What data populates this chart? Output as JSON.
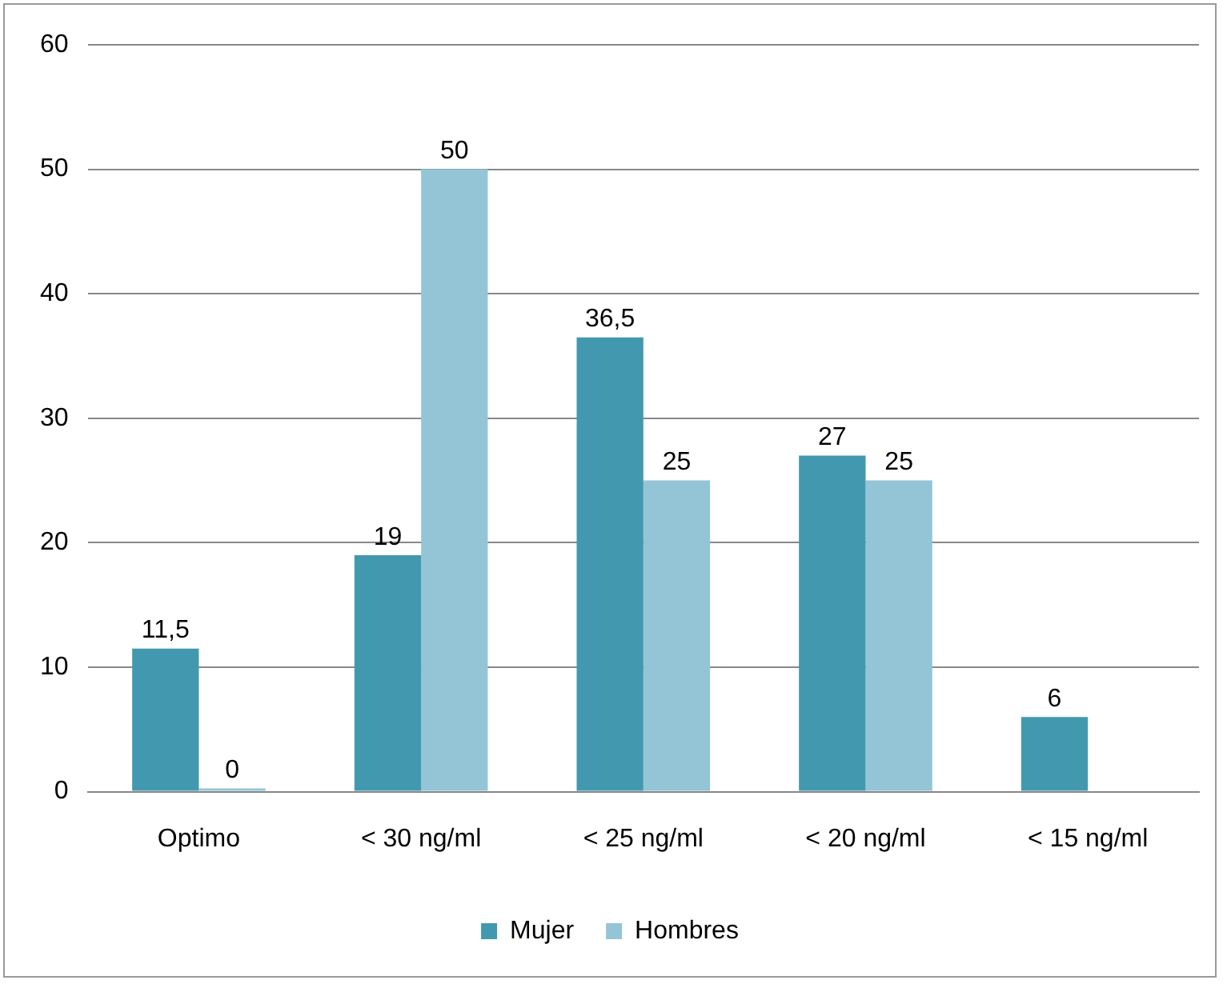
{
  "chart_data": {
    "type": "bar",
    "categories": [
      "Optimo",
      "< 30 ng/ml",
      "< 25 ng/ml",
      "< 20 ng/ml",
      "< 15 ng/ml"
    ],
    "series": [
      {
        "name": "Mujer",
        "color": "#4299af",
        "values": [
          11.5,
          19,
          36.5,
          27,
          6
        ],
        "value_labels": [
          "11,5",
          "19",
          "36,5",
          "27",
          "6"
        ]
      },
      {
        "name": "Hombres",
        "color": "#93c5d6",
        "values": [
          0,
          50,
          25,
          25,
          null
        ],
        "value_labels": [
          "0",
          "50",
          "25",
          "25",
          null
        ]
      }
    ],
    "ylim": [
      0,
      60
    ],
    "yticks": [
      0,
      10,
      20,
      30,
      40,
      50,
      60
    ],
    "grid": "y",
    "legend": "bottom"
  }
}
